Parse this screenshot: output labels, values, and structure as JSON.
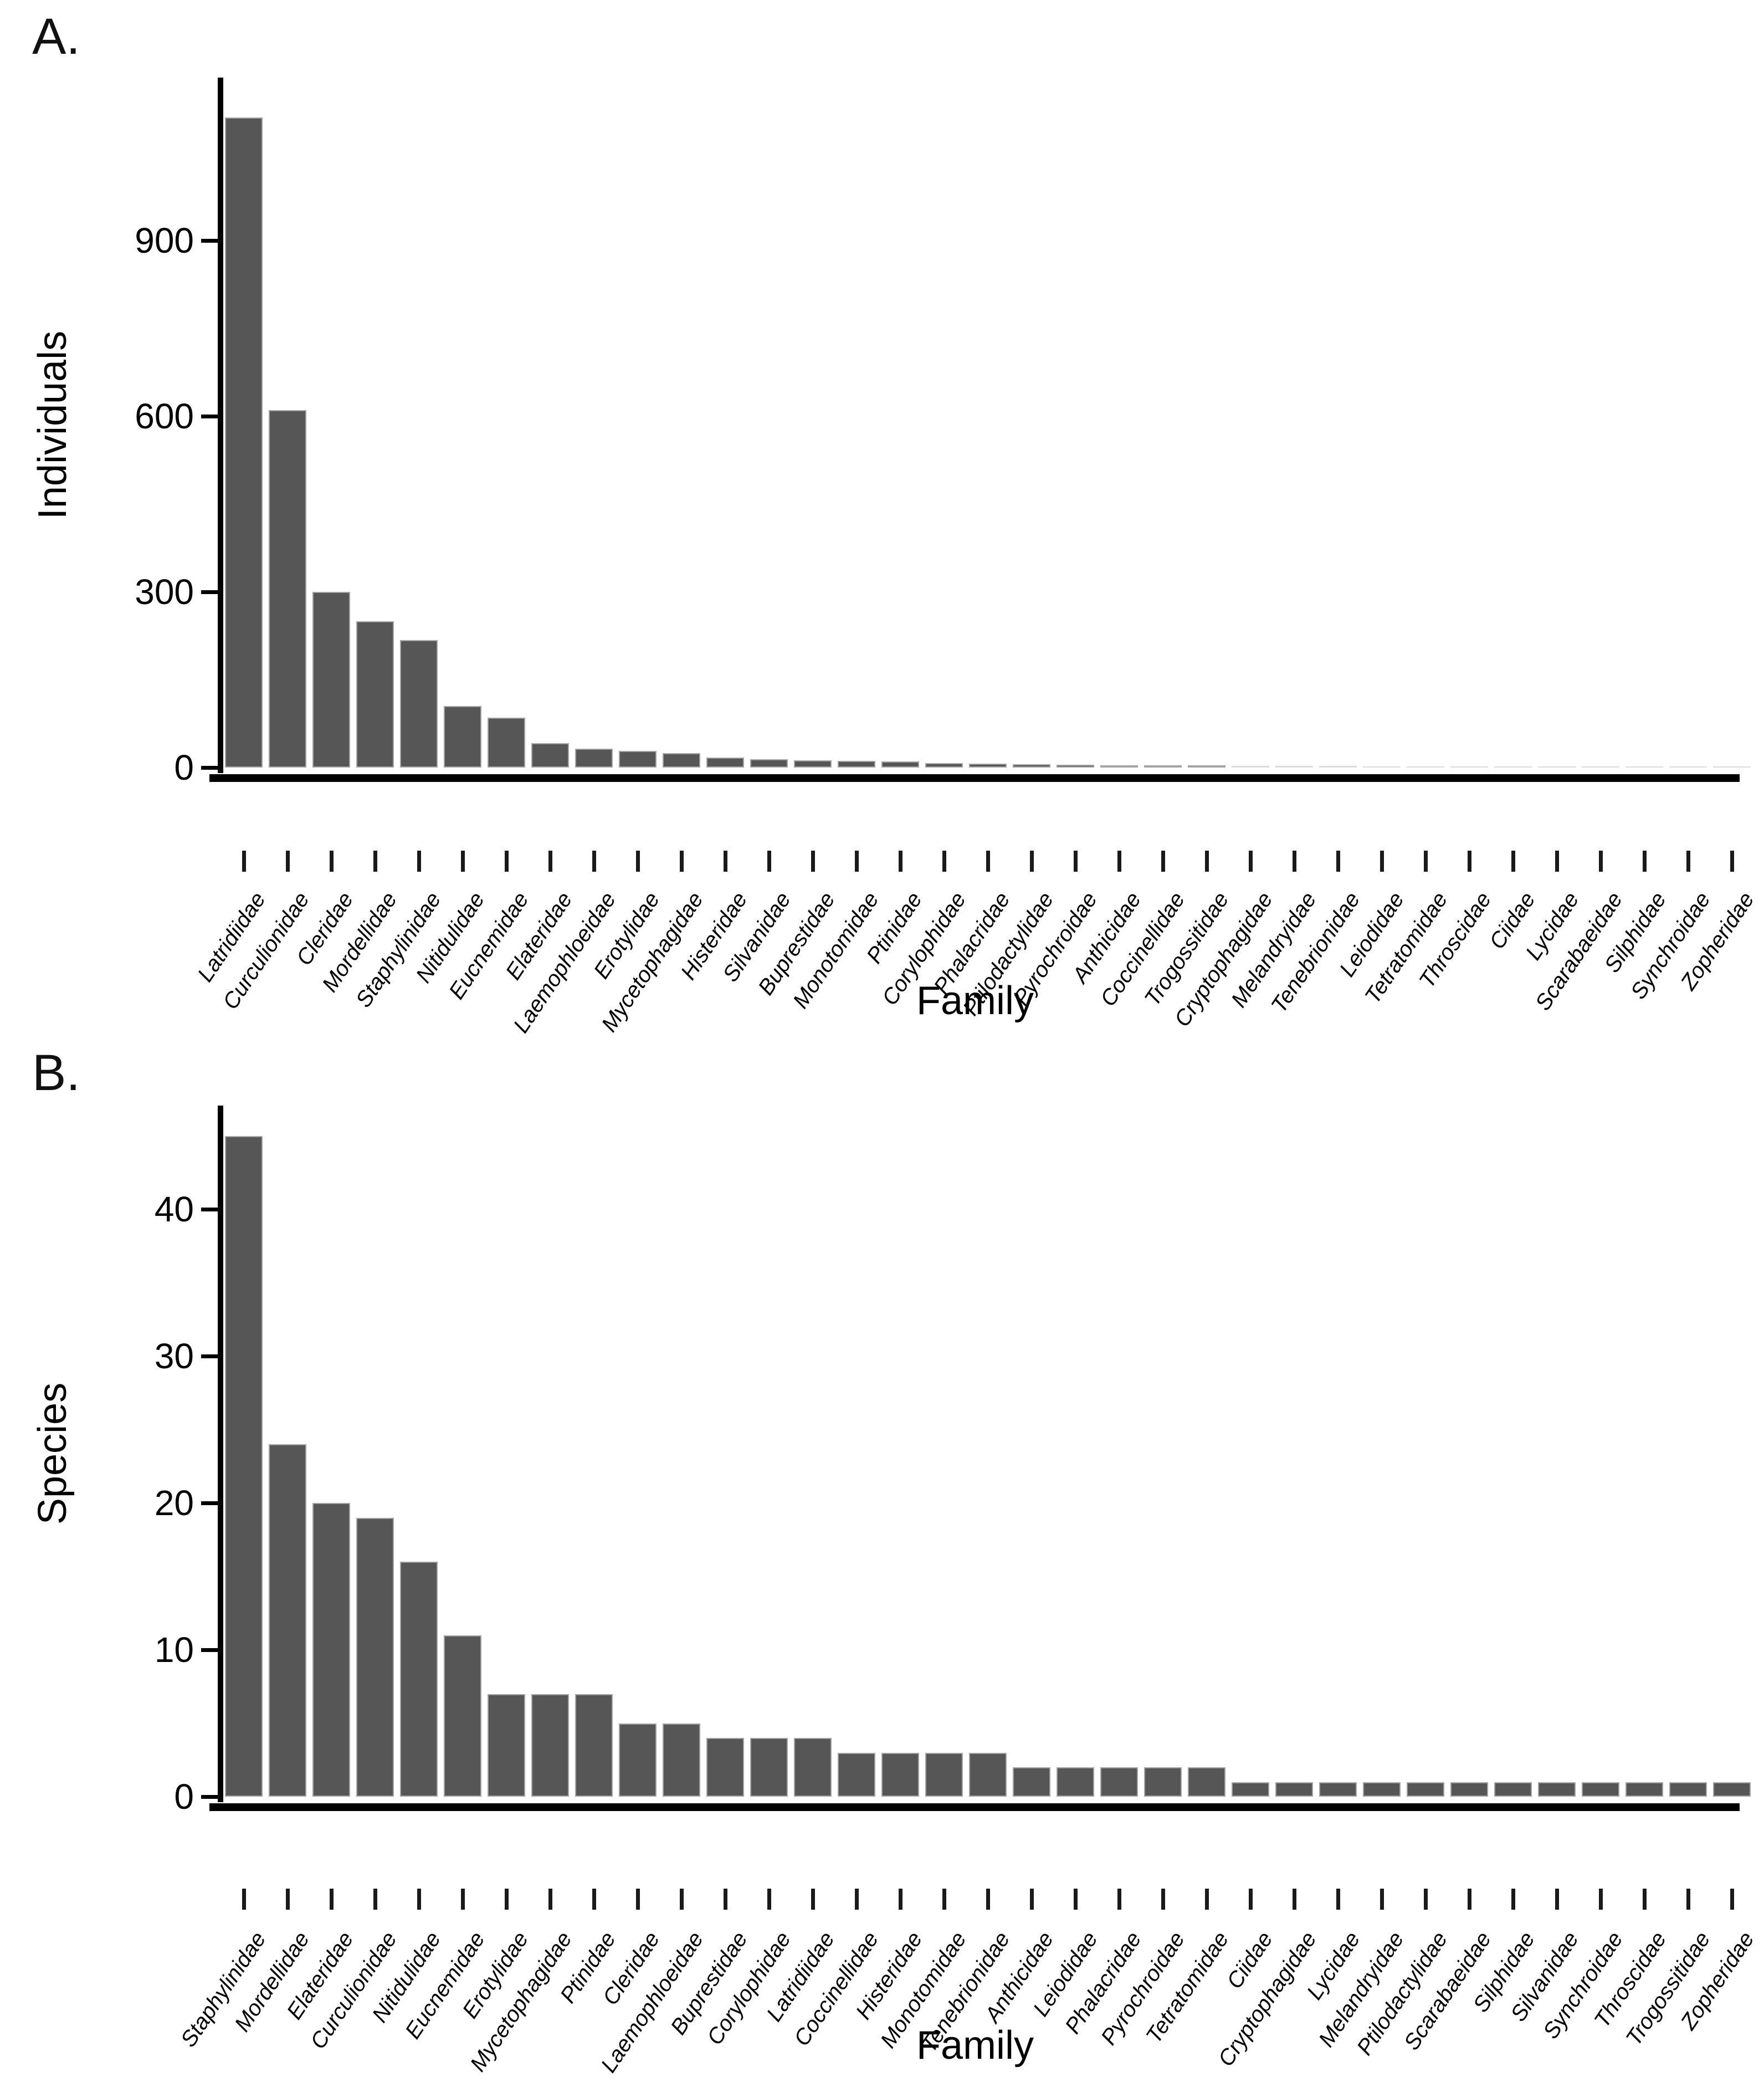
{
  "figure": {
    "background": "#ffffff",
    "text_color": "#000000",
    "bar_fill": "#565656",
    "bar_border": "#a3a3a3"
  },
  "chart_data": [
    {
      "type": "bar",
      "panel_label": "A.",
      "ylabel": "Individuals",
      "xlabel": "Family",
      "legend_position": "none",
      "grid": false,
      "ylim": [
        0,
        1160
      ],
      "yticks": [
        0,
        300,
        600,
        900
      ],
      "ytick_labels": [
        "0",
        "300",
        "600",
        "900"
      ],
      "categories": [
        "Latridiidae",
        "Curculionidae",
        "Cleridae",
        "Mordellidae",
        "Staphylinidae",
        "Nitidulidae",
        "Eucnemidae",
        "Elateridae",
        "Laemophloeidae",
        "Erotylidae",
        "Mycetophagidae",
        "Histeridae",
        "Silvanidae",
        "Buprestidae",
        "Monotomidae",
        "Ptinidae",
        "Corylophidae",
        "Phalacridae",
        "Ptilodactylidae",
        "Pyrochroidae",
        "Anthicidae",
        "Coccinellidae",
        "Trogossitidae",
        "Cryptophagidae",
        "Melandryidae",
        "Tenebrionidae",
        "Leiodidae",
        "Tetratomidae",
        "Throscidae",
        "Ciidae",
        "Lycidae",
        "Scarabaeidae",
        "Silphidae",
        "Synchroidae",
        "Zopheridae"
      ],
      "values": [
        1110,
        610,
        300,
        250,
        218,
        105,
        85,
        42,
        32,
        28,
        25,
        17,
        14,
        12,
        11,
        10,
        8,
        7,
        6,
        5,
        4,
        4,
        4,
        3,
        3,
        3,
        2,
        2,
        2,
        1,
        1,
        1,
        1,
        1,
        1
      ]
    },
    {
      "type": "bar",
      "panel_label": "B.",
      "ylabel": "Species",
      "xlabel": "Family",
      "legend_position": "none",
      "grid": false,
      "ylim": [
        0,
        47
      ],
      "yticks": [
        0,
        10,
        20,
        30,
        40
      ],
      "ytick_labels": [
        "0",
        "10",
        "20",
        "30",
        "40"
      ],
      "categories": [
        "Staphylinidae",
        "Mordellidae",
        "Elateridae",
        "Curculionidae",
        "Nitidulidae",
        "Eucnemidae",
        "Erotylidae",
        "Mycetophagidae",
        "Ptinidae",
        "Cleridae",
        "Laemophloeidae",
        "Buprestidae",
        "Corylophidae",
        "Latridiidae",
        "Coccinellidae",
        "Histeridae",
        "Monotomidae",
        "Tenebrionidae",
        "Anthicidae",
        "Leiodidae",
        "Phalacridae",
        "Pyrochroidae",
        "Tetratomidae",
        "Ciidae",
        "Cryptophagidae",
        "Lycidae",
        "Melandryidae",
        "Ptilodactylidae",
        "Scarabaeidae",
        "Silphidae",
        "Silvanidae",
        "Synchroidae",
        "Throscidae",
        "Trogossitidae",
        "Zopheridae"
      ],
      "values": [
        45,
        24,
        20,
        19,
        16,
        11,
        7,
        7,
        7,
        5,
        5,
        4,
        4,
        4,
        3,
        3,
        3,
        3,
        2,
        2,
        2,
        2,
        2,
        1,
        1,
        1,
        1,
        1,
        1,
        1,
        1,
        1,
        1,
        1,
        1
      ]
    }
  ]
}
